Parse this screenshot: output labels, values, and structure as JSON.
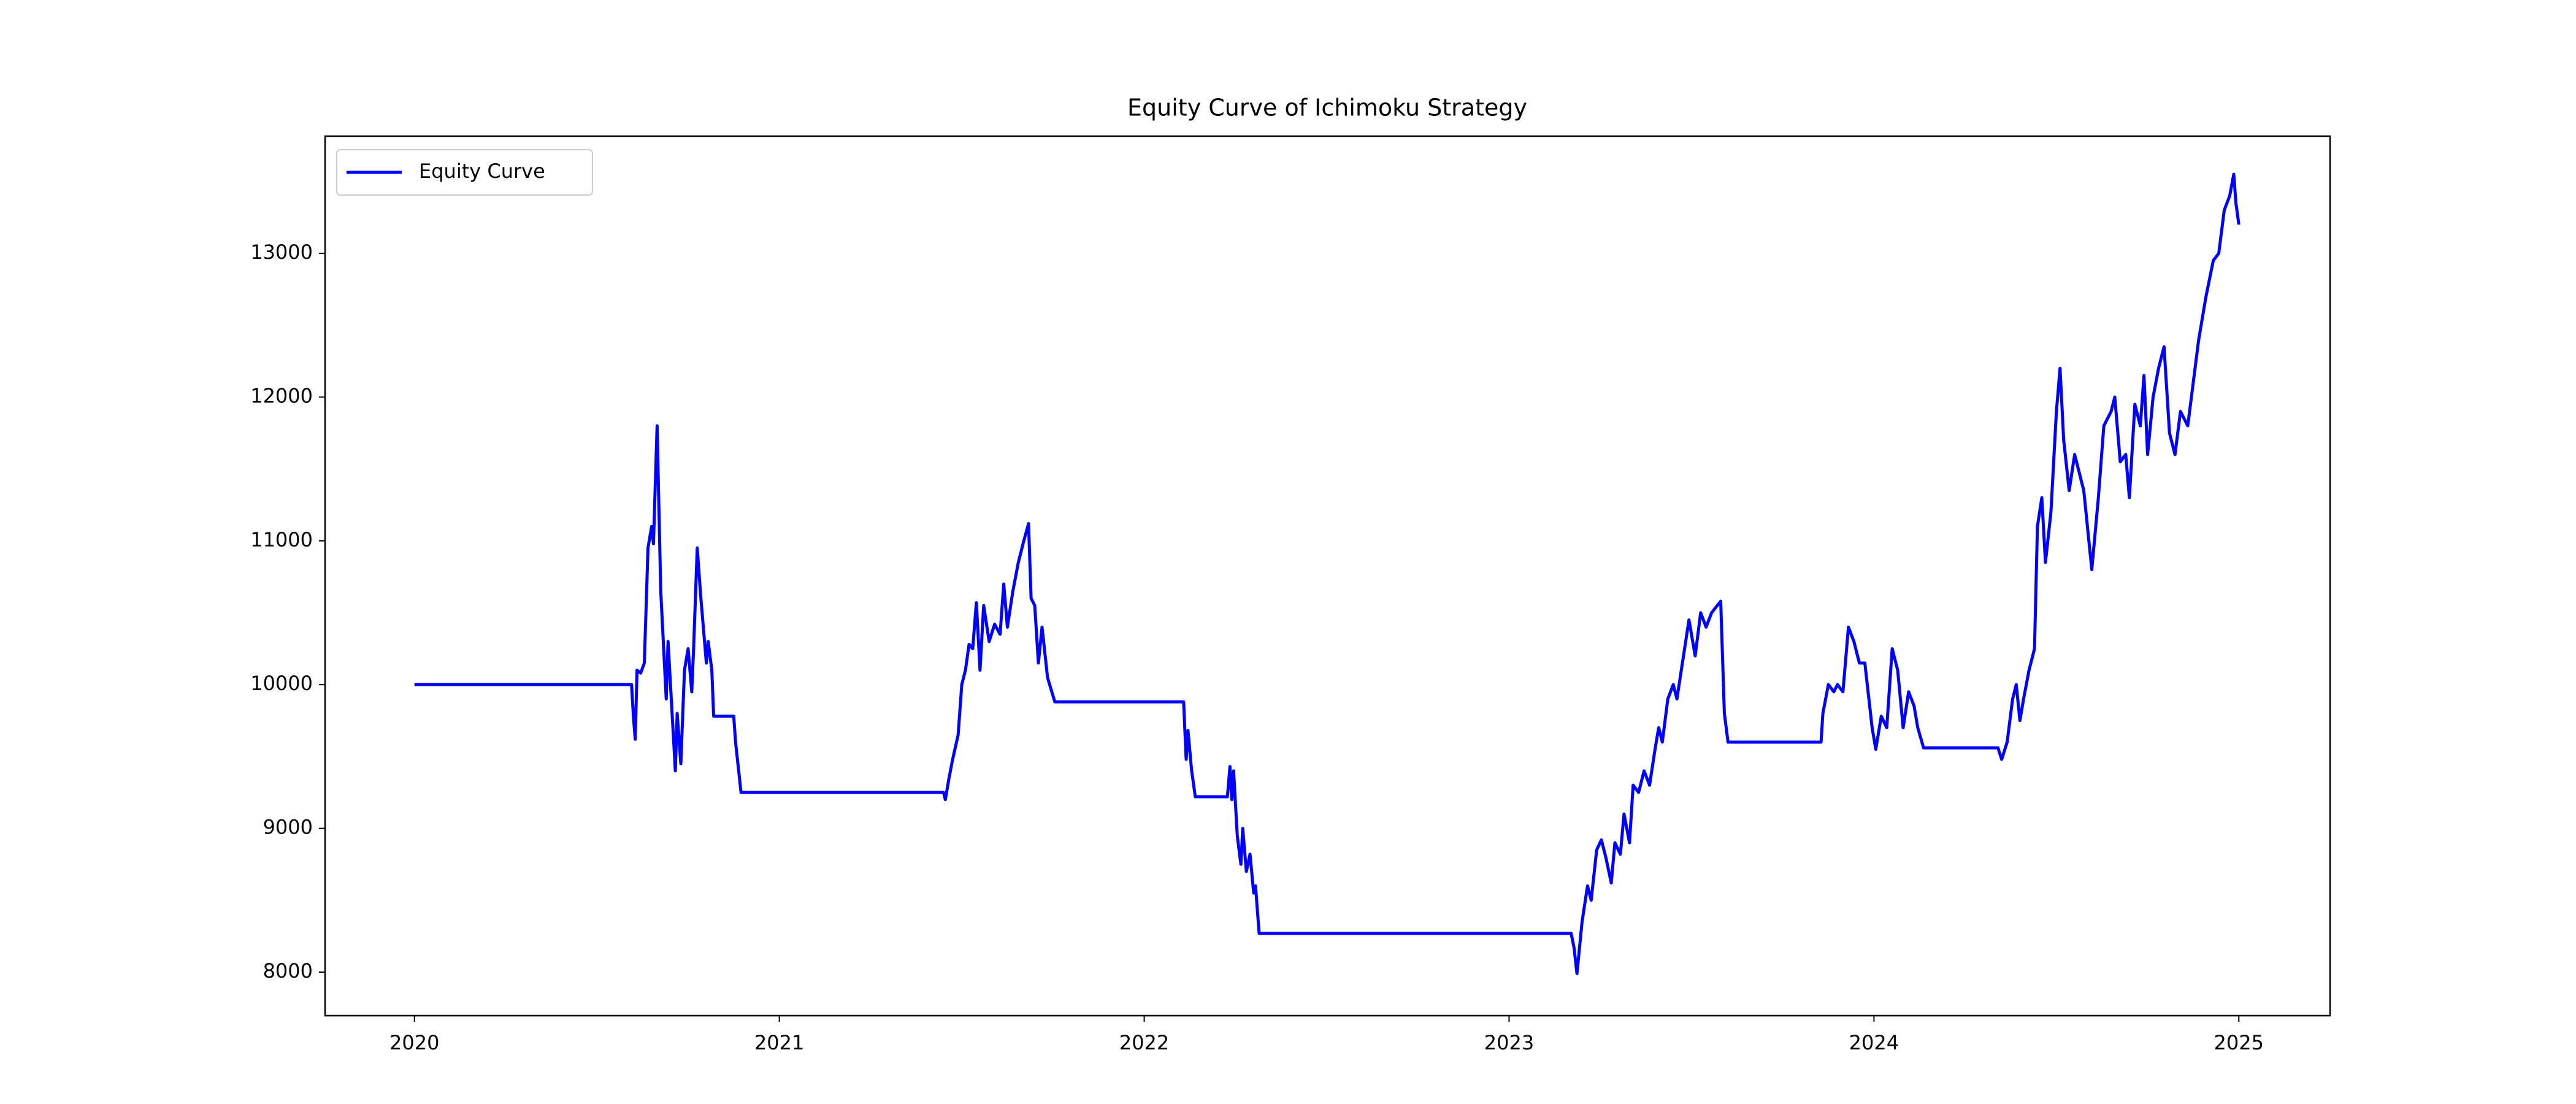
{
  "chart_data": {
    "type": "line",
    "title": "Equity Curve of Ichimoku Strategy",
    "x": [
      2020.0,
      2020.595,
      2020.6,
      2020.605,
      2020.61,
      2020.62,
      2020.63,
      2020.64,
      2020.65,
      2020.655,
      2020.665,
      2020.675,
      2020.69,
      2020.695,
      2020.705,
      2020.715,
      2020.72,
      2020.73,
      2020.74,
      2020.75,
      2020.76,
      2020.765,
      2020.775,
      2020.785,
      2020.8,
      2020.805,
      2020.815,
      2020.82,
      2020.875,
      2020.88,
      2020.895,
      2021.45,
      2021.455,
      2021.465,
      2021.475,
      2021.49,
      2021.5,
      2021.51,
      2021.52,
      2021.53,
      2021.54,
      2021.55,
      2021.56,
      2021.575,
      2021.59,
      2021.605,
      2021.615,
      2021.625,
      2021.64,
      2021.655,
      2021.67,
      2021.683,
      2021.69,
      2021.7,
      2021.71,
      2021.72,
      2021.735,
      2021.755,
      2022.108,
      2022.115,
      2022.12,
      2022.13,
      2022.14,
      2022.228,
      2022.235,
      2022.24,
      2022.245,
      2022.255,
      2022.265,
      2022.27,
      2022.28,
      2022.29,
      2022.3,
      2022.305,
      2022.315,
      2023.17,
      2023.178,
      2023.186,
      2023.2,
      2023.215,
      2023.225,
      2023.24,
      2023.253,
      2023.265,
      2023.28,
      2023.29,
      2023.305,
      2023.315,
      2023.33,
      2023.34,
      2023.355,
      2023.37,
      2023.385,
      2023.4,
      2023.41,
      2023.42,
      2023.435,
      2023.45,
      2023.46,
      2023.475,
      2023.493,
      2023.51,
      2023.525,
      2023.54,
      2023.555,
      2023.58,
      2023.59,
      2023.6,
      2023.855,
      2023.86,
      2023.875,
      2023.89,
      2023.9,
      2023.915,
      2023.93,
      2023.945,
      2023.96,
      2023.975,
      2023.995,
      2024.005,
      2024.02,
      2024.035,
      2024.05,
      2024.065,
      2024.08,
      2024.095,
      2024.11,
      2024.12,
      2024.136,
      2024.34,
      2024.35,
      2024.365,
      2024.38,
      2024.39,
      2024.4,
      2024.41,
      2024.425,
      2024.44,
      2024.448,
      2024.46,
      2024.47,
      2024.485,
      2024.5,
      2024.51,
      2024.52,
      2024.535,
      2024.55,
      2024.575,
      2024.597,
      2024.615,
      2024.63,
      2024.65,
      2024.66,
      2024.675,
      2024.69,
      2024.7,
      2024.715,
      2024.73,
      2024.74,
      2024.75,
      2024.765,
      2024.78,
      2024.795,
      2024.81,
      2024.825,
      2024.84,
      2024.86,
      2024.875,
      2024.89,
      2024.91,
      2024.93,
      2024.945,
      2024.96,
      2024.975,
      2024.986,
      2024.992,
      2025.0
    ],
    "series": [
      {
        "name": "Equity Curve",
        "color": "#0000ff",
        "values": [
          10000,
          10000,
          9780,
          9620,
          10100,
          10080,
          10150,
          10950,
          11100,
          10980,
          11800,
          10650,
          9900,
          10300,
          9850,
          9400,
          9800,
          9450,
          10100,
          10250,
          9950,
          10250,
          10950,
          10600,
          10150,
          10300,
          10100,
          9780,
          9780,
          9600,
          9250,
          9250,
          9200,
          9350,
          9480,
          9650,
          10000,
          10100,
          10280,
          10250,
          10570,
          10100,
          10550,
          10300,
          10420,
          10350,
          10700,
          10400,
          10650,
          10850,
          11000,
          11120,
          10600,
          10550,
          10150,
          10400,
          10050,
          9880,
          9880,
          9480,
          9680,
          9400,
          9220,
          9220,
          9430,
          9200,
          9400,
          8950,
          8750,
          9000,
          8700,
          8820,
          8550,
          8600,
          8270,
          8270,
          8170,
          7990,
          8350,
          8600,
          8500,
          8850,
          8920,
          8800,
          8620,
          8900,
          8820,
          9100,
          8900,
          9300,
          9250,
          9400,
          9300,
          9550,
          9700,
          9600,
          9900,
          10000,
          9900,
          10150,
          10450,
          10200,
          10500,
          10400,
          10500,
          10580,
          9800,
          9600,
          9600,
          9800,
          10000,
          9950,
          10000,
          9950,
          10400,
          10300,
          10150,
          10150,
          9700,
          9550,
          9780,
          9700,
          10250,
          10100,
          9700,
          9950,
          9850,
          9700,
          9560,
          9560,
          9480,
          9600,
          9900,
          10000,
          9750,
          9900,
          10100,
          10250,
          11100,
          11300,
          10850,
          11200,
          11900,
          12200,
          11700,
          11350,
          11600,
          11350,
          10800,
          11300,
          11800,
          11900,
          12000,
          11550,
          11600,
          11300,
          11950,
          11800,
          12150,
          11600,
          12000,
          12200,
          12350,
          11750,
          11600,
          11900,
          11800,
          12100,
          12400,
          12700,
          12950,
          13000,
          13300,
          13400,
          13550,
          13350,
          13200
        ]
      }
    ],
    "xlim": [
      2019.755,
      2025.25
    ],
    "xticks": [
      2020,
      2021,
      2022,
      2023,
      2024,
      2025
    ],
    "ylim": [
      7697,
      13815
    ],
    "yticks": [
      8000,
      9000,
      10000,
      11000,
      12000,
      13000
    ],
    "grid": false,
    "legend": "upper left"
  }
}
